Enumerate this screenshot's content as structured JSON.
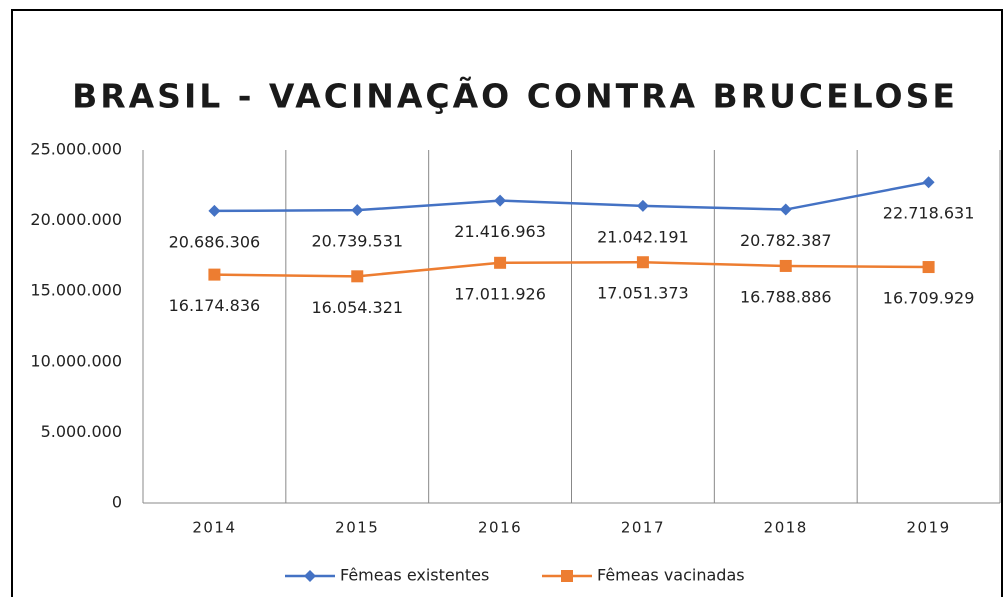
{
  "chart_data": {
    "type": "line",
    "title": "BRASIL - VACINAÇÃO CONTRA BRUCELOSE",
    "categories": [
      "2014",
      "2015",
      "2016",
      "2017",
      "2018",
      "2019"
    ],
    "series": [
      {
        "name": "Fêmeas existentes",
        "color": "#4472c4",
        "values": [
          20686306,
          20739531,
          21416963,
          21042191,
          20782387,
          22718631
        ],
        "value_labels": [
          "20.686.306",
          "20.739.531",
          "21.416.963",
          "21.042.191",
          "20.782.387",
          "22.718.631"
        ]
      },
      {
        "name": "Fêmeas vacinadas",
        "color": "#ed7d31",
        "values": [
          16174836,
          16054321,
          17011926,
          17051373,
          16788886,
          16709929
        ],
        "value_labels": [
          "16.174.836",
          "16.054.321",
          "17.011.926",
          "17.051.373",
          "16.788.886",
          "16.709.929"
        ]
      }
    ],
    "ylim": [
      0,
      25000000
    ],
    "yticks": [
      0,
      {
        "value": 5000000,
        "label": "5.000.000"
      },
      {
        "value": 10000000,
        "label": "10.000.000"
      },
      {
        "value": 15000000,
        "label": "15.000.000"
      },
      {
        "value": 20000000,
        "label": "20.000.000"
      },
      {
        "value": 25000000,
        "label": "25.000.000"
      }
    ],
    "legend": "bottom"
  }
}
